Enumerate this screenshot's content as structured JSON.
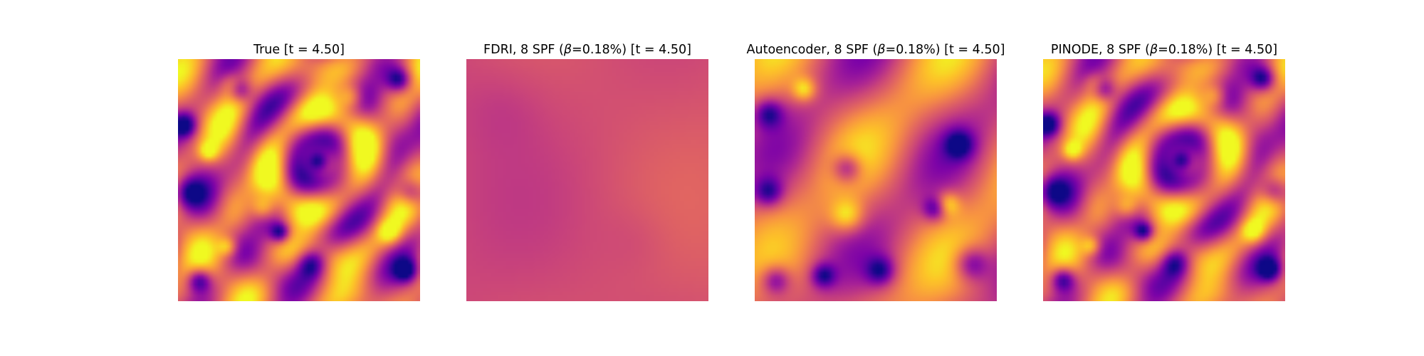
{
  "figure": {
    "colormap": "plasma",
    "panels": [
      {
        "title_prefix": "True [t = 4.50]",
        "title_beta": "",
        "title_suffix": "",
        "field": "true"
      },
      {
        "title_prefix": "FDRI, 8 SPF (",
        "title_beta": "β",
        "title_suffix": "=0.18%) [t = 4.50]",
        "field": "fdri"
      },
      {
        "title_prefix": "Autoencoder, 8 SPF (",
        "title_beta": "β",
        "title_suffix": "=0.18%) [t = 4.50]",
        "field": "autoencoder"
      },
      {
        "title_prefix": "PINODE, 8 SPF (",
        "title_beta": "β",
        "title_suffix": "=0.18%) [t = 4.50]",
        "field": "pinode"
      }
    ]
  }
}
